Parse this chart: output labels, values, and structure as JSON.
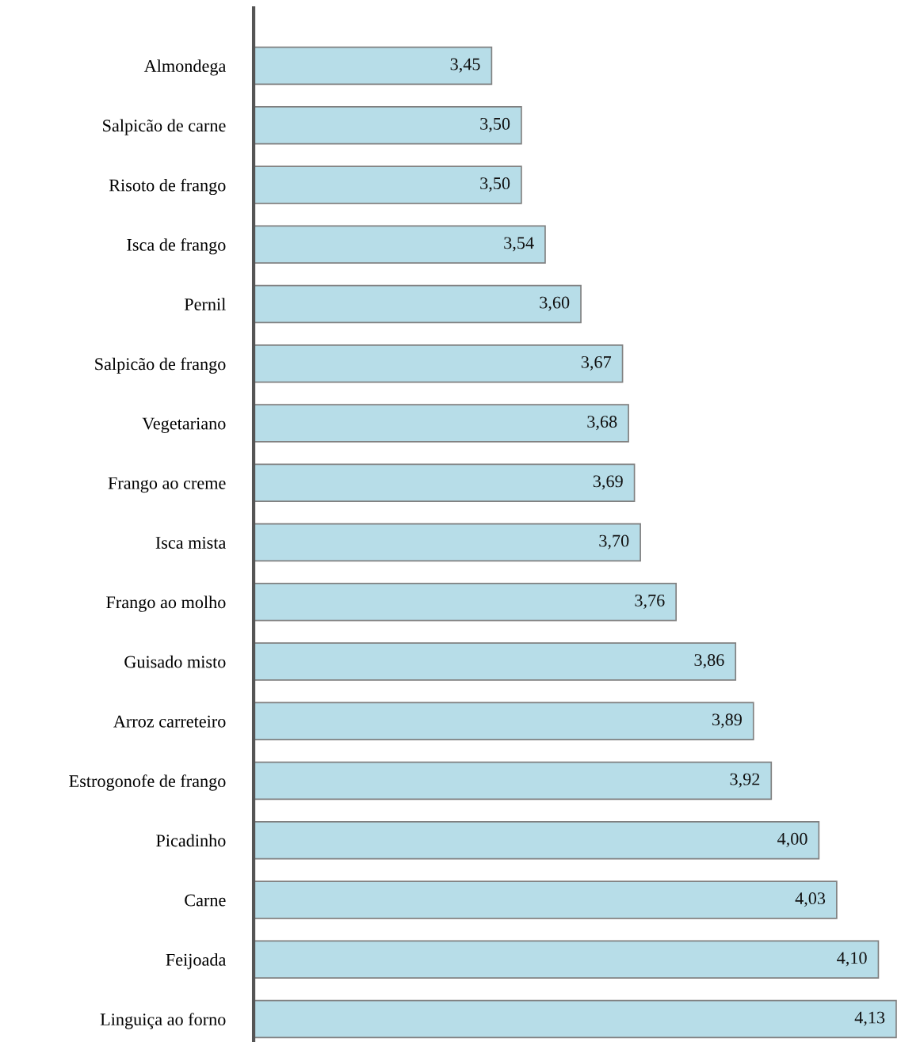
{
  "chart_data": {
    "type": "bar",
    "orientation": "horizontal",
    "categories": [
      "Almondega",
      "Salpicão de carne",
      "Risoto de frango",
      "Isca de frango",
      "Pernil",
      "Salpicão de frango",
      "Vegetariano",
      "Frango ao creme",
      "Isca mista",
      "Frango ao molho",
      "Guisado misto",
      "Arroz carreteiro",
      "Estrogonofe de frango",
      "Picadinho",
      "Carne",
      "Feijoada",
      "Linguiça ao forno"
    ],
    "values": [
      3.45,
      3.5,
      3.5,
      3.54,
      3.6,
      3.67,
      3.68,
      3.69,
      3.7,
      3.76,
      3.86,
      3.89,
      3.92,
      4.0,
      4.03,
      4.1,
      4.13
    ],
    "value_labels": [
      "3,45",
      "3,50",
      "3,50",
      "3,54",
      "3,60",
      "3,67",
      "3,68",
      "3,69",
      "3,70",
      "3,76",
      "3,86",
      "3,89",
      "3,92",
      "4,00",
      "4,03",
      "4,10",
      "4,13"
    ],
    "color": "#b7dde8",
    "xlim": [
      3.05,
      4.135
    ],
    "tick_labels": "y",
    "grid": false,
    "legend": false
  }
}
